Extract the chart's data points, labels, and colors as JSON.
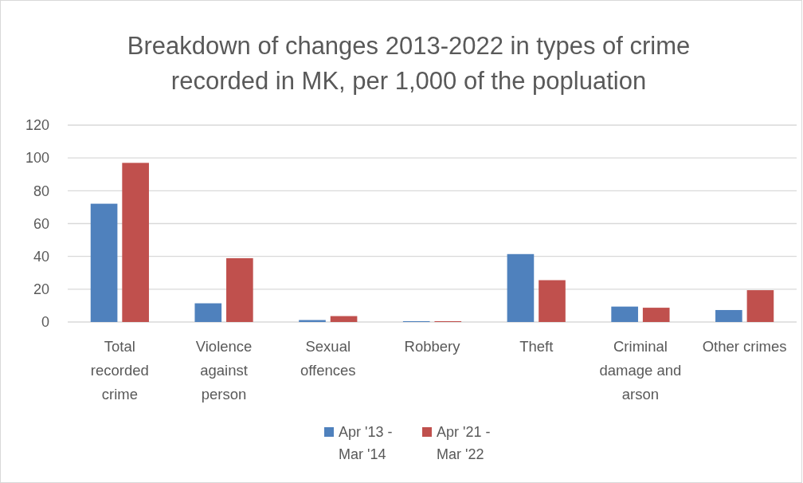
{
  "chart_data": {
    "type": "bar",
    "title": "Breakdown of changes 2013-2022 in types of crime recorded in MK, per 1,000 of the popluation",
    "categories": [
      "Total recorded crime",
      "Violence against person",
      "Sexual offences",
      "Robbery",
      "Theft",
      "Criminal damage and arson",
      "Other crimes"
    ],
    "series": [
      {
        "name": "Apr '13 - Mar '14",
        "color": "#4f81bd",
        "values": [
          72.1,
          11.4,
          1.2,
          0.5,
          41.4,
          9.4,
          7.3
        ]
      },
      {
        "name": "Apr '21 - Mar '22",
        "color": "#c0504d",
        "values": [
          97.0,
          38.9,
          3.6,
          0.5,
          25.5,
          8.7,
          19.4
        ]
      }
    ],
    "ylim": [
      0,
      120
    ],
    "yticks": [
      0,
      20,
      40,
      60,
      80,
      100,
      120
    ],
    "grid": "y",
    "legend": "bottom"
  }
}
